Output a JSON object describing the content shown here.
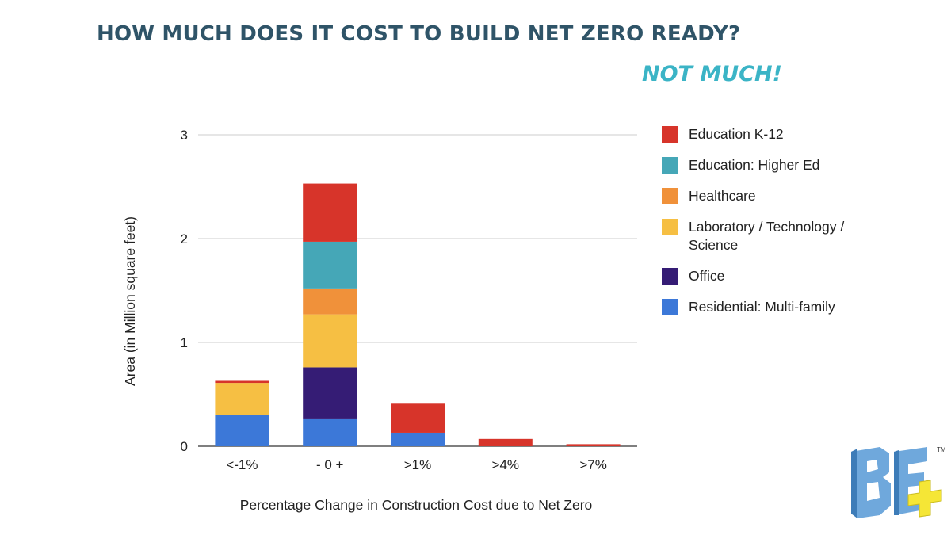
{
  "header": {
    "title": "HOW MUCH DOES IT COST TO BUILD NET ZERO READY?",
    "subtitle": "NOT MUCH!"
  },
  "colors": {
    "title": "#2f5468",
    "subtitle": "#3bb4c6",
    "grid": "#cccccc",
    "logo_blue": "#6fa8dc",
    "logo_yellow": "#f5e636"
  },
  "logo": {
    "text": "BE+",
    "mark": "TM"
  },
  "chart_data": {
    "type": "bar",
    "stacked": true,
    "categories": [
      "<-1%",
      "- 0 +",
      ">1%",
      ">4%",
      ">7%"
    ],
    "xlabel": "Percentage Change in Construction Cost due to Net Zero",
    "ylabel": "Area (in Million square feet)",
    "ylim": [
      0,
      3
    ],
    "yticks": [
      0,
      1,
      2,
      3
    ],
    "grid": true,
    "legend_position": "right",
    "series": [
      {
        "name": "Residential: Multi-family",
        "color": "#3c78d8",
        "values": [
          0.3,
          0.26,
          0.13,
          0.0,
          0.0
        ]
      },
      {
        "name": "Office",
        "color": "#351c75",
        "values": [
          0.0,
          0.5,
          0.0,
          0.0,
          0.0
        ]
      },
      {
        "name": "Laboratory / Technology / Science",
        "color": "#f6bf43",
        "values": [
          0.31,
          0.51,
          0.0,
          0.0,
          0.0
        ]
      },
      {
        "name": "Healthcare",
        "color": "#f0913a",
        "values": [
          0.0,
          0.25,
          0.0,
          0.0,
          0.0
        ]
      },
      {
        "name": "Education: Higher Ed",
        "color": "#45a7b7",
        "values": [
          0.0,
          0.45,
          0.0,
          0.0,
          0.0
        ]
      },
      {
        "name": "Education K-12",
        "color": "#d7342a",
        "values": [
          0.02,
          0.56,
          0.28,
          0.07,
          0.02
        ]
      }
    ]
  }
}
